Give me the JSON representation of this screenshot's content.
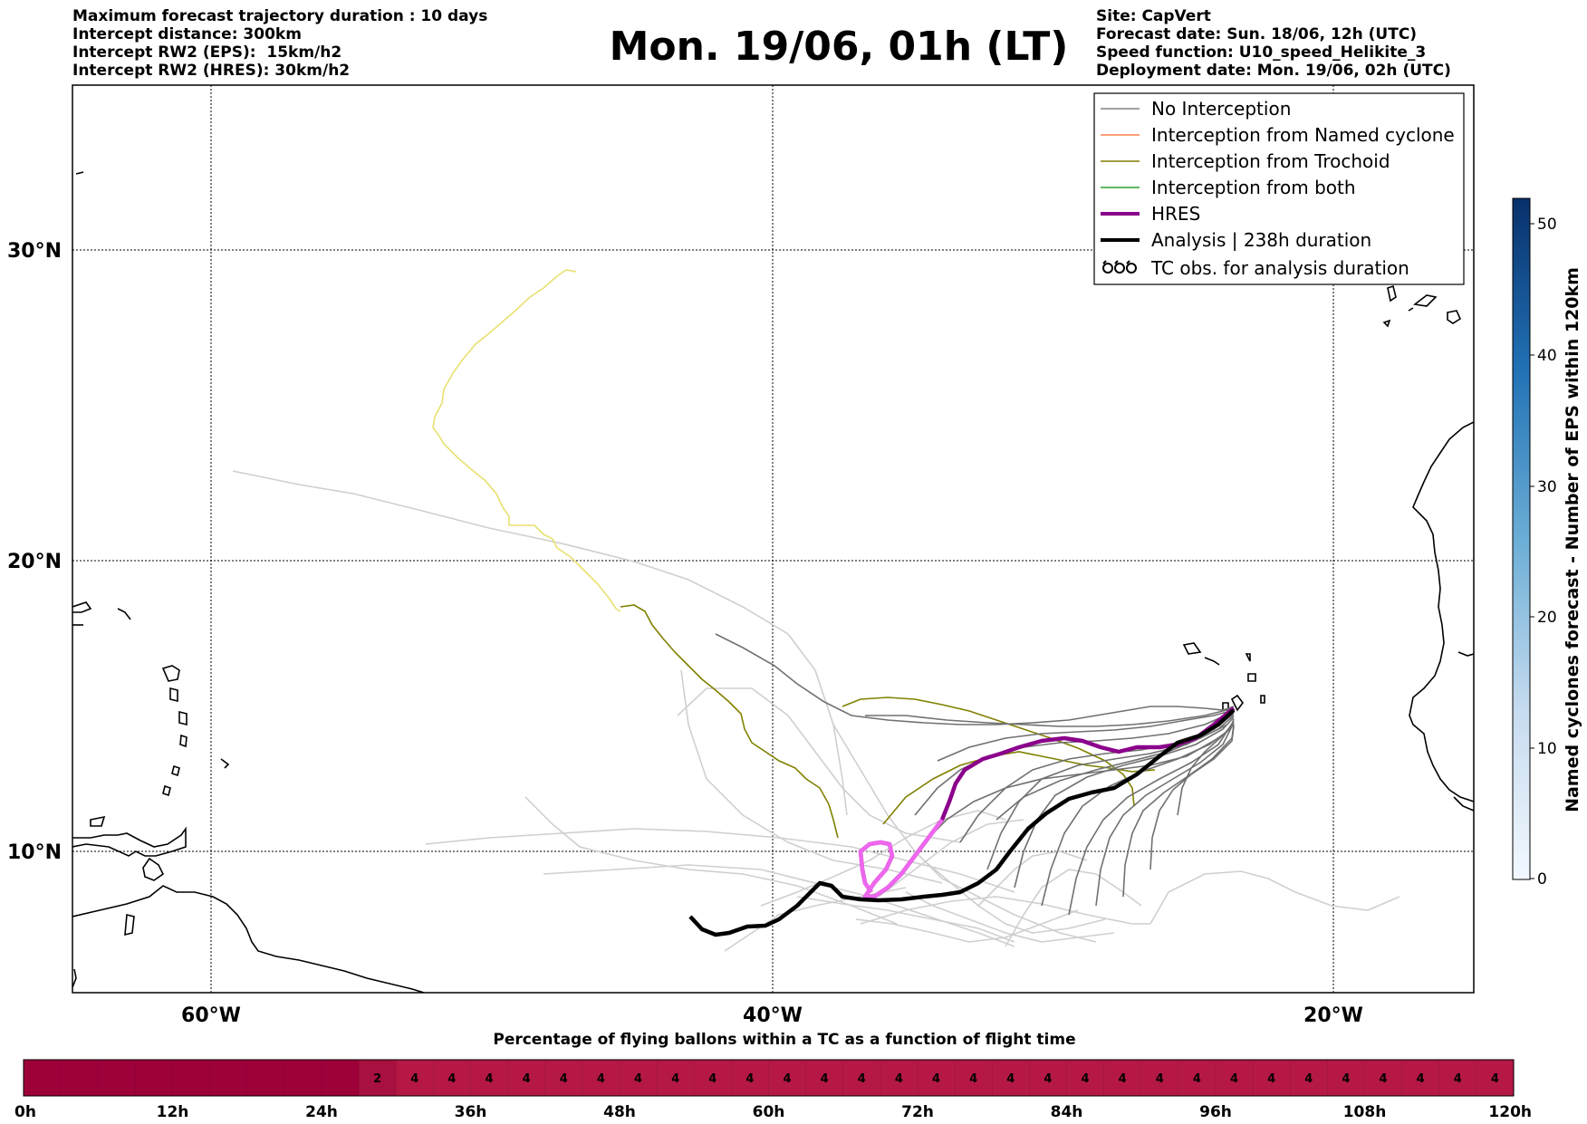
{
  "header_left": [
    "Maximum forecast trajectory duration : 10 days",
    "Intercept distance: 300km",
    "Intercept RW2 (EPS):  15km/h2",
    "Intercept RW2 (HRES): 30km/h2"
  ],
  "header_right": [
    "Site: CapVert",
    "Forecast date: Sun. 18/06, 12h (UTC)",
    "Speed function: U10_speed_Helikite_3",
    "Deployment date: Mon. 19/06, 02h (UTC)"
  ],
  "title": "Mon. 19/06, 01h (LT)",
  "map": {
    "lat_labels": [
      "30°N",
      "20°N",
      "10°N"
    ],
    "lon_labels": [
      "60°W",
      "40°W",
      "20°W"
    ]
  },
  "legend": [
    {
      "label": "No Interception",
      "color": "#808080"
    },
    {
      "label": "Interception from Named cyclone",
      "color": "#ff7f50"
    },
    {
      "label": "Interception from Trochoid",
      "color": "#808000"
    },
    {
      "label": "Interception from both",
      "color": "#2ca02c"
    },
    {
      "label": "HRES",
      "color": "#8b008b"
    },
    {
      "label": "Analysis | 238h duration",
      "color": "#000000"
    },
    {
      "label": "TC obs. for analysis duration",
      "color": "#000000"
    }
  ],
  "colorbar": {
    "label": "Named cyclones forecast - Number of EPS within 120km",
    "ticks": [
      "50",
      "40",
      "30",
      "20",
      "10",
      "0"
    ]
  },
  "bottom_bar": {
    "title": "Percentage of flying ballons within a TC as a function of flight time",
    "ticks": [
      "0h",
      "12h",
      "24h",
      "36h",
      "48h",
      "60h",
      "72h",
      "84h",
      "96h",
      "108h",
      "120h"
    ],
    "cells": [
      "",
      "",
      "",
      "",
      "",
      "",
      "",
      "",
      "",
      "2",
      "4",
      "4",
      "4",
      "4",
      "4",
      "4",
      "4",
      "4",
      "4",
      "4",
      "4",
      "4",
      "4",
      "4",
      "4",
      "4",
      "4",
      "4",
      "4",
      "4",
      "4",
      "4",
      "4",
      "4",
      "4",
      "4",
      "4",
      "4",
      "4",
      "4"
    ],
    "colors": {
      "dark": "#9e003a",
      "mid": "#a8103f",
      "light": "#b51845"
    }
  }
}
